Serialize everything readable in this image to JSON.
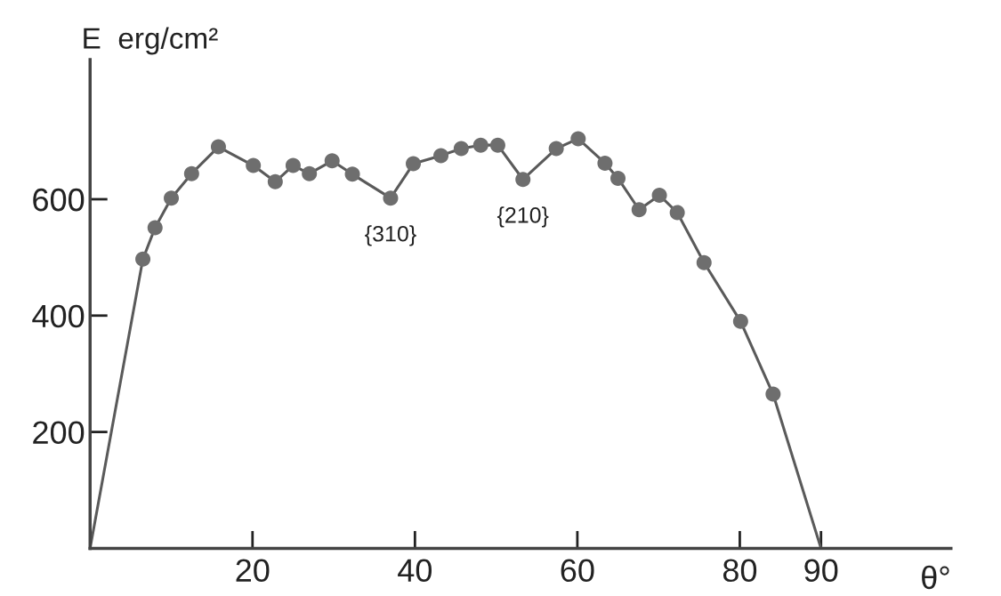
{
  "chart_data": {
    "type": "line",
    "xlabel": "θ°",
    "ylabel": "E  erg/cm²",
    "xlim": [
      0,
      106
    ],
    "ylim": [
      0,
      840
    ],
    "xticks": [
      20,
      40,
      60,
      80,
      90
    ],
    "yticks": [
      200,
      400,
      600
    ],
    "grid": false,
    "legend": false,
    "series": [
      {
        "color": "#5a5a5a",
        "marker": "none",
        "x": [
          0,
          6.5,
          8.0,
          10.0,
          12.5,
          15.8,
          20.1,
          22.8,
          25.0,
          27.0,
          29.8,
          32.3,
          37.0,
          39.8,
          43.2,
          45.7,
          48.1,
          50.2,
          53.3,
          57.4,
          60.1,
          63.4,
          65.0,
          67.6,
          70.1,
          72.3,
          75.6,
          80.1,
          84.1,
          90
        ],
        "values": [
          0,
          497,
          551,
          602,
          644,
          690,
          658,
          630,
          658,
          644,
          666,
          643,
          602,
          661,
          675,
          687,
          693,
          693,
          634,
          687,
          704,
          662,
          636,
          582,
          607,
          577,
          491,
          390,
          265,
          0
        ]
      },
      {
        "type": "scatter",
        "color": "#6e6e6e",
        "marker": "circle",
        "x": [
          6.5,
          8.0,
          10.0,
          12.5,
          15.8,
          20.1,
          22.8,
          25.0,
          27.0,
          29.8,
          32.3,
          37.0,
          39.8,
          43.2,
          45.7,
          48.1,
          50.2,
          53.3,
          57.4,
          60.1,
          63.4,
          65.0,
          67.6,
          70.1,
          72.3,
          75.6,
          80.1,
          84.1
        ],
        "values": [
          497,
          551,
          602,
          644,
          690,
          658,
          630,
          658,
          644,
          666,
          643,
          602,
          661,
          675,
          687,
          693,
          693,
          634,
          687,
          704,
          662,
          636,
          582,
          607,
          577,
          491,
          390,
          265
        ]
      }
    ],
    "annotations": [
      {
        "text": "{310}",
        "x": 37.0,
        "y": 602
      },
      {
        "text": "{210}",
        "x": 53.3,
        "y": 634
      }
    ]
  }
}
